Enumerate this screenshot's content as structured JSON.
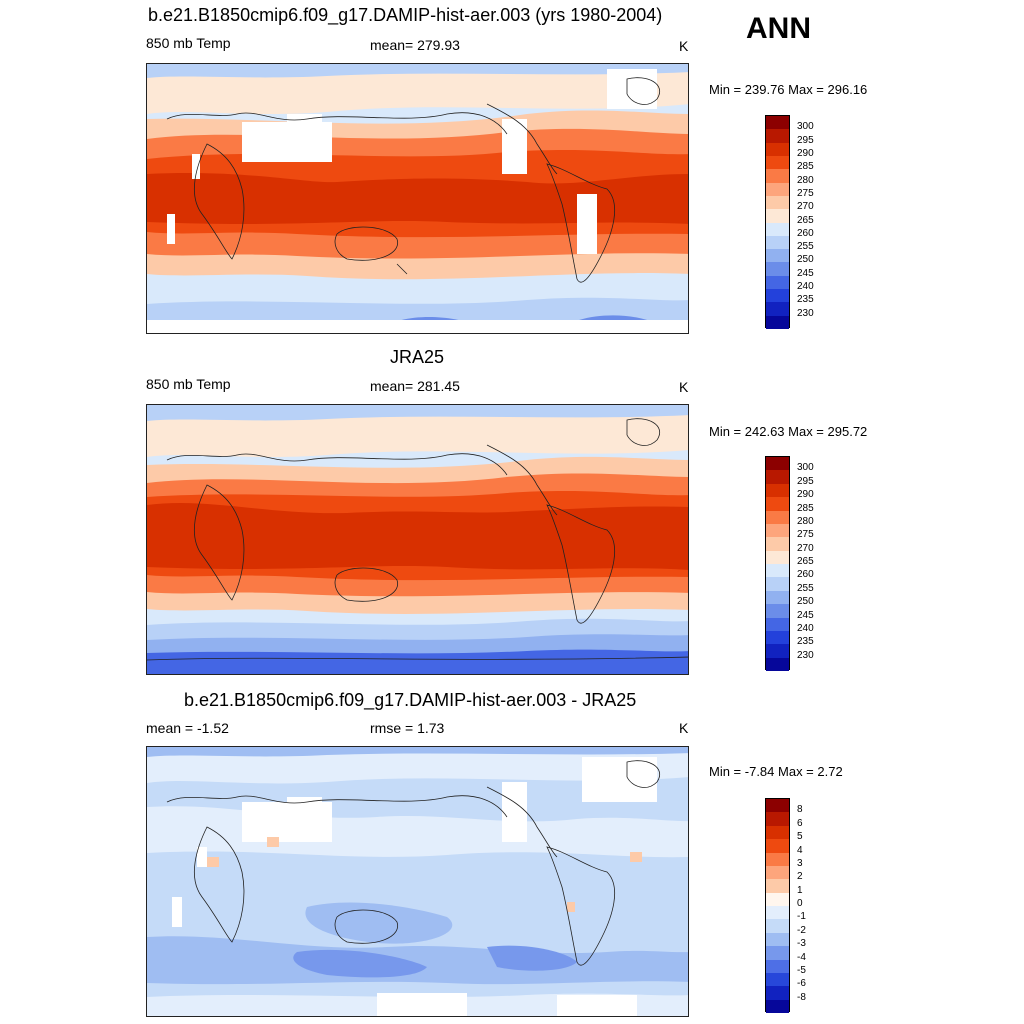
{
  "season": "ANN",
  "panels": [
    {
      "id": "model",
      "title": "b.e21.B1850cmip6.f09_g17.DAMIP-hist-aer.003 (yrs 1980-2004)",
      "left_label": "850 mb Temp",
      "center_label": "mean= 279.93",
      "units": "K",
      "minmax": "Min = 239.76 Max = 296.16",
      "colorbar_labels": [
        "300",
        "295",
        "290",
        "285",
        "280",
        "275",
        "270",
        "265",
        "260",
        "255",
        "250",
        "245",
        "240",
        "235",
        "230"
      ],
      "colorbar_colors": [
        "#8c0000",
        "#b81800",
        "#d83000",
        "#ee4a10",
        "#fa7a45",
        "#fda57c",
        "#fdcaa8",
        "#fde8d6",
        "#d9e9fb",
        "#b8d1f7",
        "#91b1f0",
        "#6b8de9",
        "#4466e4",
        "#2341db",
        "#1122c0",
        "#06079a"
      ]
    },
    {
      "id": "obs",
      "title": "JRA25",
      "left_label": "850 mb Temp",
      "center_label": "mean= 281.45",
      "units": "K",
      "minmax": "Min = 242.63 Max = 295.72",
      "colorbar_labels": [
        "300",
        "295",
        "290",
        "285",
        "280",
        "275",
        "270",
        "265",
        "260",
        "255",
        "250",
        "245",
        "240",
        "235",
        "230"
      ],
      "colorbar_colors": [
        "#8c0000",
        "#b81800",
        "#d83000",
        "#ee4a10",
        "#fa7a45",
        "#fda57c",
        "#fdcaa8",
        "#fde8d6",
        "#d9e9fb",
        "#b8d1f7",
        "#91b1f0",
        "#6b8de9",
        "#4466e4",
        "#2341db",
        "#1122c0",
        "#06079a"
      ]
    },
    {
      "id": "diff",
      "title": "b.e21.B1850cmip6.f09_g17.DAMIP-hist-aer.003 - JRA25",
      "left_label": "mean =  -1.52",
      "center_label": "rmse =   1.73",
      "units": "K",
      "minmax": "Min =  -7.84 Max =   2.72",
      "colorbar_labels": [
        "8",
        "6",
        "5",
        "4",
        "3",
        "2",
        "1",
        "0",
        "-1",
        "-2",
        "-3",
        "-4",
        "-5",
        "-6",
        "-8"
      ],
      "colorbar_colors": [
        "#8c0000",
        "#b81800",
        "#d83000",
        "#ee4a10",
        "#fa7a45",
        "#fda57c",
        "#fdcaa8",
        "#fff6ee",
        "#e3eefc",
        "#c5dbf8",
        "#9fbdf2",
        "#7798ec",
        "#4e6fe6",
        "#2747da",
        "#1122c0",
        "#06079a"
      ]
    }
  ]
}
